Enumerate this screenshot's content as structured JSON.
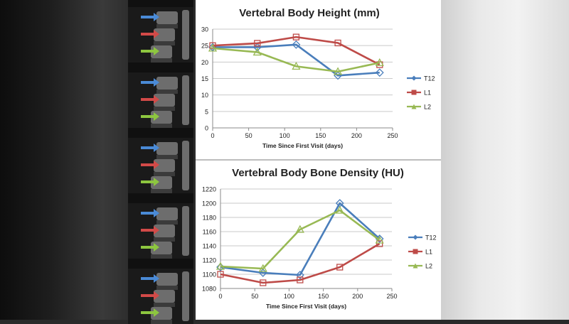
{
  "colors": {
    "T12": "#4a7ebb",
    "L1": "#be4b48",
    "L2": "#98b954",
    "blue_arrow": "#4a8ad6",
    "red_arrow": "#d24a48",
    "green_arrow": "#8dc63f"
  },
  "scans": [
    {
      "arrows": [
        "blue",
        "red",
        "green"
      ]
    },
    {
      "arrows": [
        "blue",
        "red",
        "green"
      ]
    },
    {
      "arrows": [
        "blue",
        "red",
        "green"
      ]
    },
    {
      "arrows": [
        "blue",
        "red",
        "green"
      ]
    },
    {
      "arrows": [
        "blue",
        "red",
        "green"
      ]
    }
  ],
  "chart_data": [
    {
      "type": "line",
      "title": "Vertebral Body Height (mm)",
      "xlabel": "Time Since First Visit (days)",
      "ylabel": "",
      "xlim": [
        0,
        250
      ],
      "ylim": [
        0,
        30
      ],
      "xticks": [
        0,
        50,
        100,
        150,
        200,
        250
      ],
      "yticks": [
        0,
        5,
        10,
        15,
        20,
        25,
        30
      ],
      "grid": true,
      "legend": "right",
      "series": [
        {
          "name": "T12",
          "marker": "diamond",
          "x": [
            0,
            62,
            116,
            174,
            232
          ],
          "y": [
            24.5,
            24.5,
            25.3,
            15.9,
            16.8
          ]
        },
        {
          "name": "L1",
          "marker": "square",
          "x": [
            0,
            62,
            116,
            174,
            232
          ],
          "y": [
            25.0,
            25.7,
            27.6,
            25.8,
            19.2
          ]
        },
        {
          "name": "L2",
          "marker": "triangle",
          "x": [
            0,
            62,
            116,
            174,
            232
          ],
          "y": [
            24.2,
            23.0,
            18.7,
            17.1,
            19.8
          ]
        }
      ]
    },
    {
      "type": "line",
      "title": "Vertebral Body Bone Density (HU)",
      "xlabel": "Time Since First Visit (days)",
      "ylabel": "",
      "xlim": [
        0,
        250
      ],
      "ylim": [
        1080,
        1220
      ],
      "xticks": [
        0,
        50,
        100,
        150,
        200,
        250
      ],
      "yticks": [
        1080,
        1100,
        1120,
        1140,
        1160,
        1180,
        1200,
        1220
      ],
      "grid": true,
      "legend": "right",
      "series": [
        {
          "name": "T12",
          "marker": "diamond",
          "x": [
            0,
            62,
            116,
            174,
            232
          ],
          "y": [
            1110,
            1102,
            1099,
            1200,
            1150
          ]
        },
        {
          "name": "L1",
          "marker": "square",
          "x": [
            0,
            62,
            116,
            174,
            232
          ],
          "y": [
            1100,
            1088,
            1092,
            1110,
            1143
          ]
        },
        {
          "name": "L2",
          "marker": "triangle",
          "x": [
            0,
            62,
            116,
            174,
            232
          ],
          "y": [
            1111,
            1108,
            1163,
            1190,
            1148
          ]
        }
      ]
    }
  ]
}
